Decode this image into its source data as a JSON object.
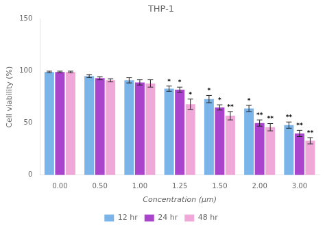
{
  "chart_data": {
    "type": "bar",
    "title": "THP-1",
    "xlabel": "Concentration (μm)",
    "ylabel": "Cell viability (%)",
    "categories": [
      "0.00",
      "0.50",
      "1.00",
      "1.25",
      "1.50",
      "2.00",
      "3.00"
    ],
    "series": [
      {
        "name": "12 hr",
        "color": "#7ab4e8",
        "values": [
          99,
          95,
          91,
          83,
          73,
          64,
          48
        ],
        "errors": [
          0.8,
          1.5,
          2.5,
          2.5,
          3.5,
          3,
          3
        ],
        "annotations": [
          null,
          null,
          null,
          "*",
          "*",
          "*",
          "**"
        ]
      },
      {
        "name": "24 hr",
        "color": "#aa44cc",
        "values": [
          99,
          93,
          89,
          82,
          65,
          50,
          40
        ],
        "errors": [
          0.8,
          1.5,
          2.5,
          2.5,
          2.5,
          3,
          3
        ],
        "annotations": [
          null,
          null,
          null,
          "*",
          "*",
          "**",
          "**"
        ]
      },
      {
        "name": "48 hr",
        "color": "#f0a8d8",
        "values": [
          99,
          91,
          88,
          68,
          57,
          46,
          33
        ],
        "errors": [
          0.8,
          1.5,
          3.5,
          5,
          4,
          3.5,
          3
        ],
        "annotations": [
          null,
          null,
          null,
          "*",
          "**",
          "**",
          "**"
        ]
      }
    ],
    "ylim": [
      0,
      150
    ],
    "yticks": [
      0,
      50,
      100,
      150
    ],
    "grid": false,
    "legend": "bottom"
  }
}
